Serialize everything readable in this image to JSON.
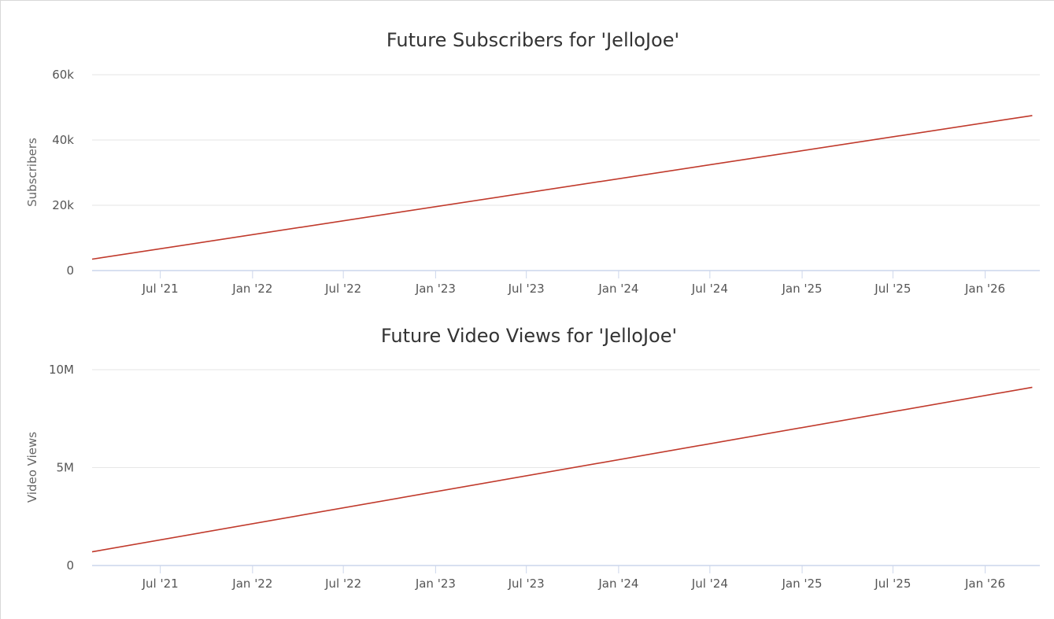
{
  "chart_data": [
    {
      "type": "line",
      "title": "Future Subscribers for 'JelloJoe'",
      "ylabel": "Subscribers",
      "xlabel": "",
      "x_ticks": [
        "Jul '21",
        "Jan '22",
        "Jul '22",
        "Jan '23",
        "Jul '23",
        "Jan '24",
        "Jul '24",
        "Jan '25",
        "Jul '25",
        "Jan '26"
      ],
      "y_ticks": [
        "0",
        "20k",
        "40k",
        "60k"
      ],
      "ylim": [
        0,
        60000
      ],
      "x_range": [
        "2021-02-15",
        "2026-04-20"
      ],
      "grid": true,
      "color": "#c0392b",
      "series": [
        {
          "x": [
            "2021-02-15",
            "2026-04-05"
          ],
          "y": [
            3500,
            47500
          ]
        }
      ]
    },
    {
      "type": "line",
      "title": "Future Video Views for 'JelloJoe'",
      "ylabel": "Video Views",
      "xlabel": "",
      "x_ticks": [
        "Jul '21",
        "Jan '22",
        "Jul '22",
        "Jan '23",
        "Jul '23",
        "Jan '24",
        "Jul '24",
        "Jan '25",
        "Jul '25",
        "Jan '26"
      ],
      "y_ticks": [
        "0",
        "5M",
        "10M"
      ],
      "ylim": [
        0,
        10000000
      ],
      "x_range": [
        "2021-02-15",
        "2026-04-20"
      ],
      "grid": true,
      "color": "#c0392b",
      "series": [
        {
          "x": [
            "2021-02-15",
            "2026-04-05"
          ],
          "y": [
            700000,
            9100000
          ]
        }
      ]
    }
  ]
}
